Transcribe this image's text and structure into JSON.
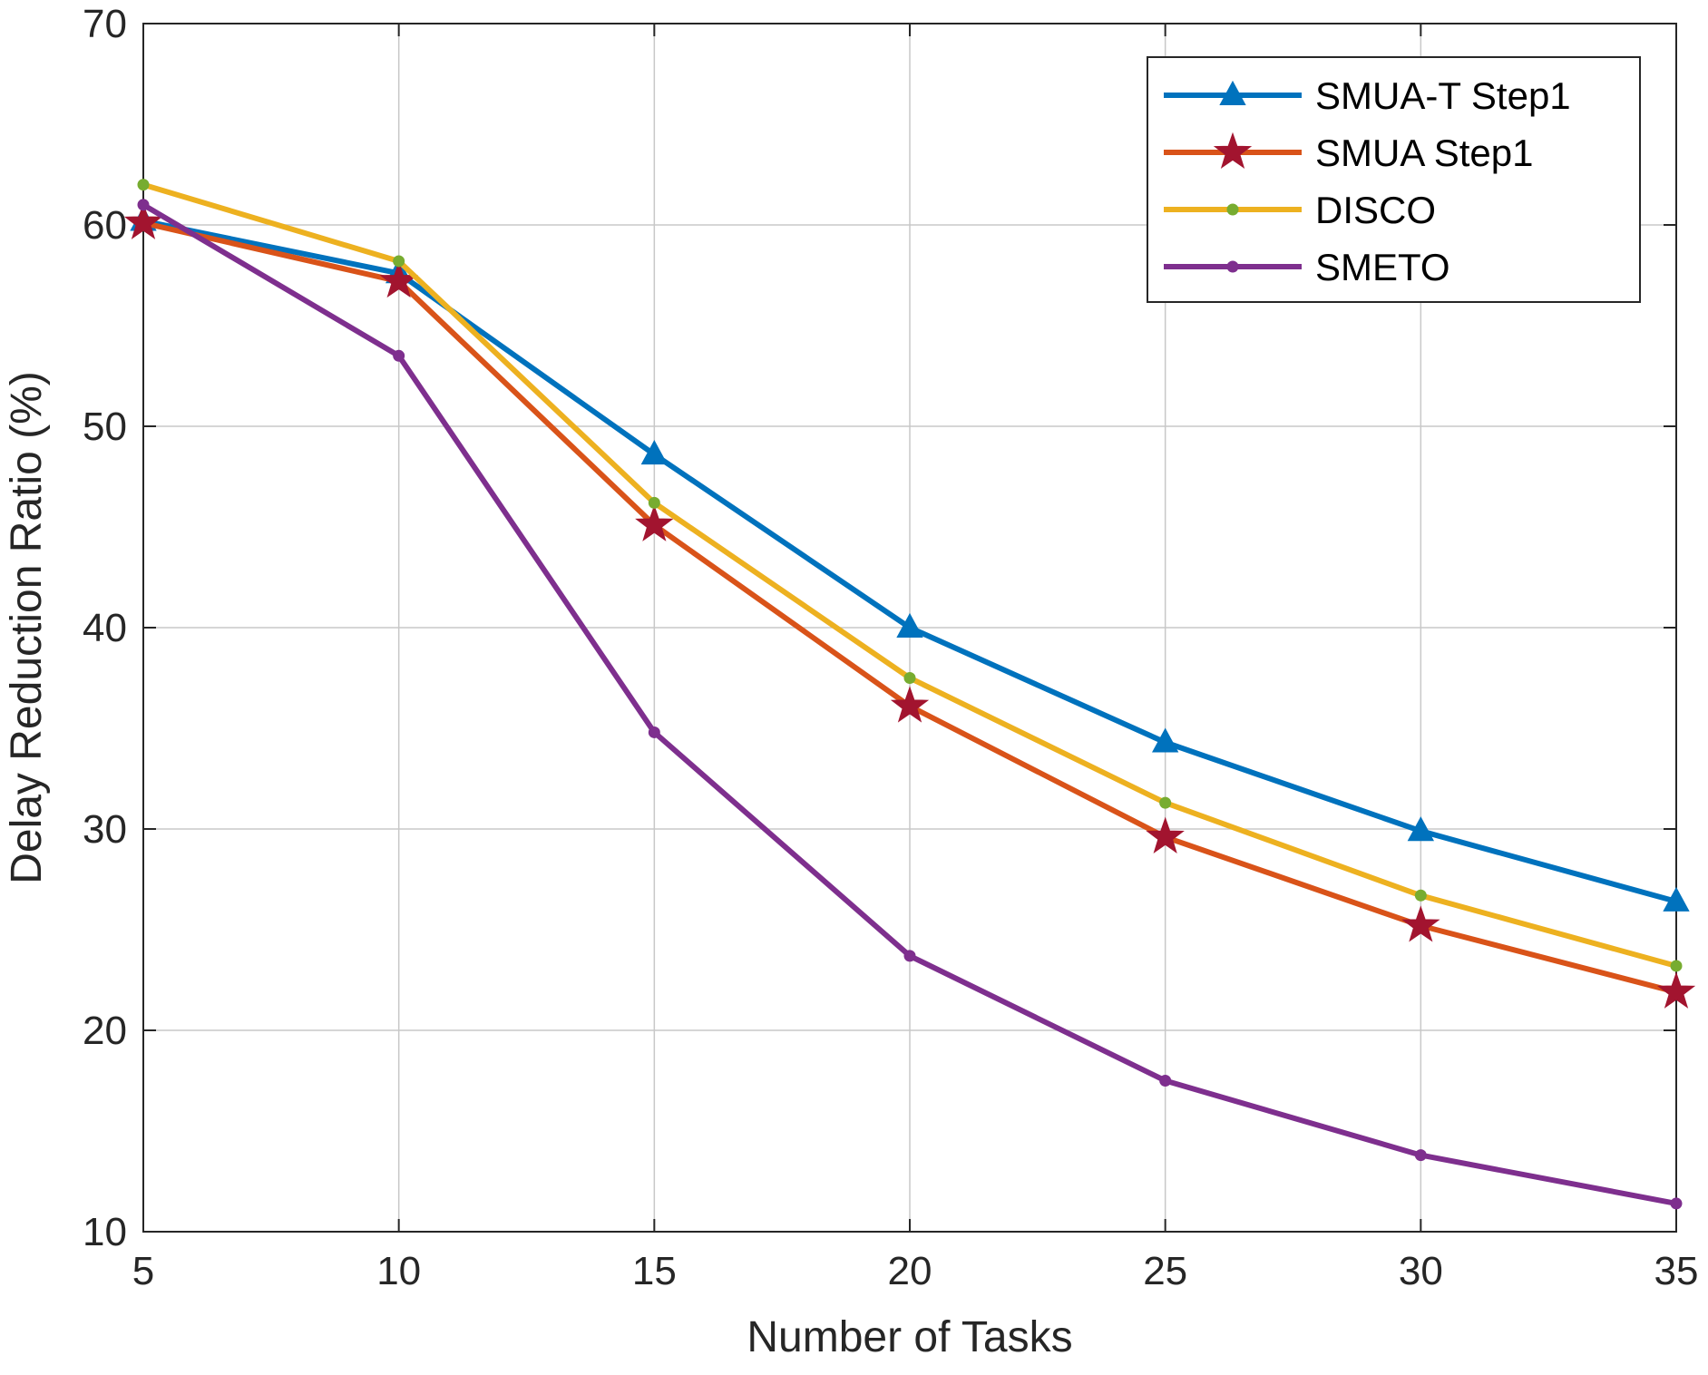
{
  "chart_data": {
    "type": "line",
    "title": "",
    "xlabel": "Number of Tasks",
    "ylabel": "Delay Reduction Ratio (%)",
    "x": [
      5,
      10,
      15,
      20,
      25,
      30,
      35
    ],
    "xlim": [
      5,
      35
    ],
    "ylim": [
      10,
      70
    ],
    "xticks": [
      5,
      10,
      15,
      20,
      25,
      30,
      35
    ],
    "yticks": [
      10,
      20,
      30,
      40,
      50,
      60,
      70
    ],
    "grid": true,
    "legend_position": "top-right",
    "series": [
      {
        "name": "SMUA-T Step1",
        "color": "#0072BD",
        "marker": "triangle",
        "values": [
          60.2,
          57.6,
          48.6,
          40.0,
          34.3,
          29.9,
          26.4
        ]
      },
      {
        "name": "SMUA Step1",
        "color": "#D95319",
        "marker_color": "#A2142F",
        "marker": "star",
        "values": [
          60.1,
          57.2,
          45.1,
          36.1,
          29.6,
          25.2,
          21.9
        ]
      },
      {
        "name": "DISCO",
        "color": "#EDB120",
        "marker_color": "#77AC30",
        "marker": "dot",
        "values": [
          62.0,
          58.2,
          46.2,
          37.5,
          31.3,
          26.7,
          23.2
        ]
      },
      {
        "name": "SMETO",
        "color": "#7E2F8E",
        "marker": "dot",
        "values": [
          61.0,
          53.5,
          34.8,
          23.7,
          17.5,
          13.8,
          11.4
        ]
      }
    ]
  }
}
